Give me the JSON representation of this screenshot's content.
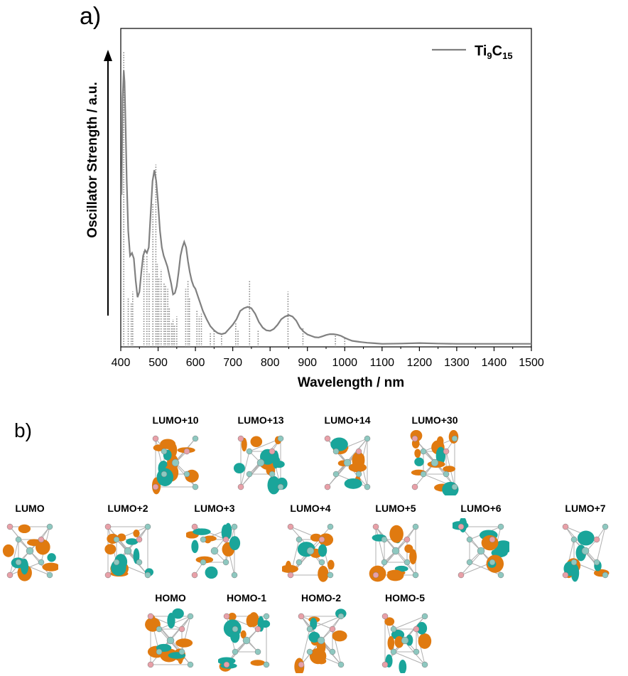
{
  "panel_a_label": "a)",
  "panel_b_label": "b)",
  "chart_data": {
    "type": "line",
    "xlabel": "Wavelength / nm",
    "ylabel": "Oscillator Strength / a.u.",
    "xlim": [
      400,
      1500
    ],
    "ylim": [
      0,
      1.05
    ],
    "xticks": [
      400,
      500,
      600,
      700,
      800,
      900,
      1000,
      1100,
      1200,
      1300,
      1400,
      1500
    ],
    "grid": false,
    "legend": {
      "position": "top-right",
      "formula": {
        "el1": "Ti",
        "sub1": "9",
        "el2": "C",
        "sub2": "15"
      }
    },
    "series": [
      {
        "name": "Ti9C15",
        "color": "#808080",
        "x": [
          402,
          405,
          408,
          410,
          413,
          416,
          420,
          425,
          430,
          435,
          440,
          445,
          450,
          455,
          460,
          465,
          470,
          475,
          480,
          485,
          490,
          495,
          500,
          505,
          510,
          515,
          520,
          525,
          530,
          535,
          540,
          545,
          550,
          555,
          560,
          565,
          570,
          575,
          580,
          585,
          590,
          595,
          600,
          605,
          610,
          620,
          630,
          640,
          650,
          660,
          670,
          680,
          690,
          700,
          710,
          720,
          730,
          740,
          750,
          760,
          770,
          780,
          790,
          800,
          810,
          820,
          830,
          840,
          850,
          860,
          870,
          880,
          890,
          900,
          910,
          920,
          930,
          940,
          950,
          960,
          970,
          980,
          990,
          1000,
          1010,
          1020,
          1040,
          1060,
          1080,
          1100,
          1150,
          1200,
          1250,
          1300,
          1400,
          1500
        ],
        "y": [
          0.55,
          0.9,
          1.0,
          0.96,
          0.8,
          0.6,
          0.42,
          0.33,
          0.34,
          0.32,
          0.24,
          0.18,
          0.2,
          0.27,
          0.33,
          0.35,
          0.34,
          0.36,
          0.48,
          0.6,
          0.64,
          0.6,
          0.52,
          0.42,
          0.36,
          0.33,
          0.31,
          0.29,
          0.26,
          0.23,
          0.19,
          0.195,
          0.22,
          0.27,
          0.33,
          0.36,
          0.38,
          0.36,
          0.31,
          0.27,
          0.24,
          0.22,
          0.21,
          0.19,
          0.17,
          0.13,
          0.1,
          0.075,
          0.06,
          0.05,
          0.046,
          0.05,
          0.065,
          0.08,
          0.1,
          0.13,
          0.14,
          0.145,
          0.14,
          0.12,
          0.09,
          0.07,
          0.06,
          0.058,
          0.065,
          0.08,
          0.1,
          0.11,
          0.115,
          0.11,
          0.095,
          0.07,
          0.055,
          0.045,
          0.04,
          0.035,
          0.034,
          0.038,
          0.043,
          0.046,
          0.046,
          0.044,
          0.04,
          0.033,
          0.027,
          0.022,
          0.018,
          0.015,
          0.013,
          0.011,
          0.012,
          0.014,
          0.012,
          0.011,
          0.011,
          0.011
        ]
      }
    ],
    "sticks": {
      "color": "#888888",
      "x": [
        408,
        420,
        428,
        432,
        462,
        470,
        476,
        486,
        494,
        498,
        502,
        508,
        516,
        520,
        526,
        530,
        536,
        540,
        544,
        550,
        574,
        580,
        584,
        604,
        610,
        616,
        640,
        650,
        670,
        708,
        714,
        745,
        768,
        848,
        888,
        975,
        1000
      ],
      "y": [
        1.1,
        0.18,
        0.16,
        0.2,
        0.35,
        0.33,
        0.27,
        0.52,
        0.66,
        0.3,
        0.25,
        0.28,
        0.23,
        0.22,
        0.21,
        0.14,
        0.09,
        0.1,
        0.08,
        0.11,
        0.21,
        0.24,
        0.18,
        0.13,
        0.11,
        0.12,
        0.05,
        0.06,
        0.04,
        0.09,
        0.06,
        0.24,
        0.06,
        0.2,
        0.07,
        0.04,
        0.03
      ]
    }
  },
  "orbitals": [
    {
      "label": "LUMO+10",
      "row": 0
    },
    {
      "label": "LUMO+13",
      "row": 0
    },
    {
      "label": "LUMO+14",
      "row": 0
    },
    {
      "label": "LUMO+30",
      "row": 0
    },
    {
      "label": "LUMO",
      "row": 1
    },
    {
      "label": "LUMO+2",
      "row": 1
    },
    {
      "label": "LUMO+3",
      "row": 1
    },
    {
      "label": "LUMO+4",
      "row": 1
    },
    {
      "label": "LUMO+5",
      "row": 1
    },
    {
      "label": "LUMO+6",
      "row": 1
    },
    {
      "label": "LUMO+7",
      "row": 1
    },
    {
      "label": "HOMO",
      "row": 2
    },
    {
      "label": "HOMO-1",
      "row": 2
    },
    {
      "label": "HOMO-2",
      "row": 2
    },
    {
      "label": "HOMO-5",
      "row": 2
    }
  ],
  "colors": {
    "orbital_positive": "#e07a10",
    "orbital_negative": "#1aa59a",
    "atom_ti": "#e8a0a8",
    "atom_c": "#8ec8c0",
    "bond": "#b0b0b0"
  }
}
